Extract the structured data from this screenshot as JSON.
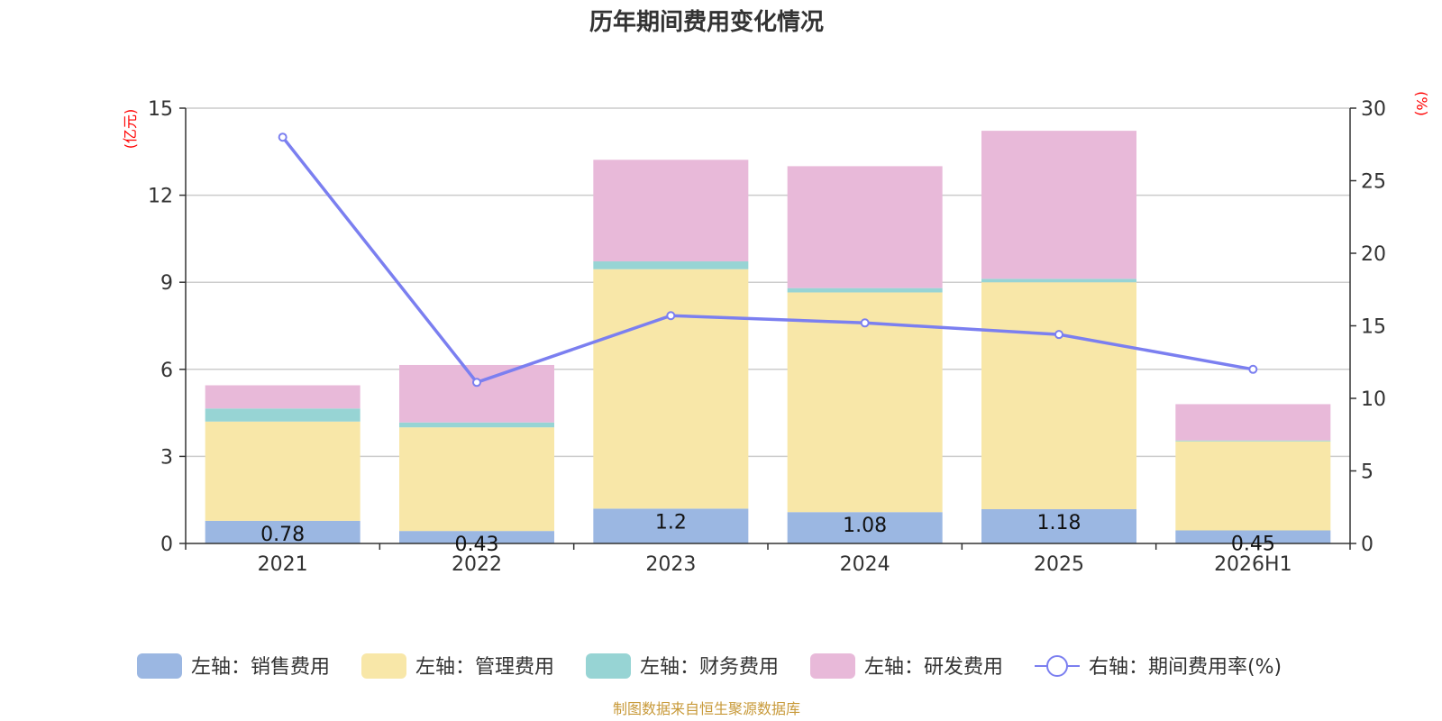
{
  "chart_data": {
    "type": "bar",
    "title": "历年期间费用变化情况",
    "categories": [
      "2021",
      "2022",
      "2023",
      "2024",
      "2025",
      "2026H1"
    ],
    "left_axis": {
      "unit": "(亿元)",
      "ylim": [
        0,
        15
      ],
      "ticks": [
        "0",
        "3",
        "6",
        "9",
        "12",
        "15"
      ]
    },
    "right_axis": {
      "unit": "(%)",
      "ylim": [
        0,
        30
      ],
      "ticks": [
        "0",
        "5",
        "10",
        "15",
        "20",
        "25",
        "30"
      ]
    },
    "series": [
      {
        "name": "左轴：销售费用",
        "type": "bar",
        "stack": true,
        "color": "#9bb7e2",
        "values": [
          0.78,
          0.43,
          1.2,
          1.08,
          1.18,
          0.45
        ],
        "labels": [
          "0.78",
          "0.43",
          "1.2",
          "1.08",
          "1.18",
          "0.45"
        ]
      },
      {
        "name": "左轴：管理费用",
        "type": "bar",
        "stack": true,
        "color": "#f8e7a8",
        "values": [
          3.42,
          3.57,
          8.25,
          7.57,
          7.82,
          3.07
        ]
      },
      {
        "name": "左轴：财务费用",
        "type": "bar",
        "stack": true,
        "color": "#97d4d4",
        "values": [
          0.45,
          0.17,
          0.27,
          0.15,
          0.12,
          0.03
        ]
      },
      {
        "name": "左轴：研发费用",
        "type": "bar",
        "stack": true,
        "color": "#e8b9d9",
        "values": [
          0.8,
          1.98,
          3.5,
          4.2,
          5.1,
          1.25
        ]
      },
      {
        "name": "右轴：期间费用率(%)",
        "type": "line",
        "axis": "right",
        "color": "#7b7ff0",
        "values": [
          28.0,
          11.1,
          15.7,
          15.2,
          14.4,
          12.0
        ]
      }
    ],
    "grid": true,
    "legend_position": "bottom"
  },
  "source_note": "制图数据来自恒生聚源数据库"
}
